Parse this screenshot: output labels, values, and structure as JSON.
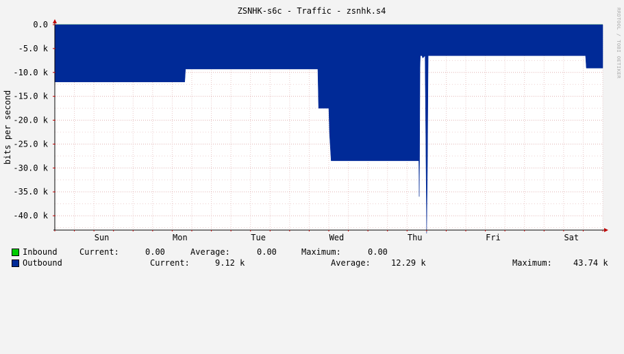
{
  "chart_data": {
    "type": "area",
    "title": "ZSNHK-s6c - Traffic - zsnhk.s4",
    "ylabel": "bits per second",
    "watermark": "RRDTOOL / TOBI OETIKER",
    "y_ticks": [
      "0.0",
      "-5.0 k",
      "-10.0 k",
      "-15.0 k",
      "-20.0 k",
      "-25.0 k",
      "-30.0 k",
      "-35.0 k",
      "-40.0 k"
    ],
    "y_tick_values": [
      0,
      -5000,
      -10000,
      -15000,
      -20000,
      -25000,
      -30000,
      -35000,
      -40000
    ],
    "ylim": [
      -43000,
      0
    ],
    "x_ticks": [
      "Sun",
      "Mon",
      "Tue",
      "Wed",
      "Thu",
      "Fri",
      "Sat"
    ],
    "xlim_days": [
      0,
      7
    ],
    "x_tick_days": [
      0.6,
      1.6,
      2.6,
      3.6,
      4.6,
      5.6,
      6.6
    ],
    "grid": true,
    "colors": {
      "inbound": "#00cc00",
      "outbound": "#002a97",
      "grid": "#e0b0b0",
      "axis": "#c00000",
      "canvas": "#ffffff",
      "background": "#f3f3f3"
    },
    "series": [
      {
        "name": "Inbound",
        "x_days": [
          0,
          7
        ],
        "values": [
          0,
          0
        ]
      },
      {
        "name": "Outbound",
        "x_days": [
          0,
          1.66,
          1.67,
          3.36,
          3.37,
          3.5,
          3.51,
          3.53,
          3.55,
          4.65,
          4.655,
          4.66,
          4.665,
          4.67,
          4.69,
          4.7,
          4.73,
          4.74,
          4.75,
          4.76,
          4.77,
          4.78,
          5.05,
          6.78,
          6.79,
          7
        ],
        "values": [
          -12000,
          -12000,
          -9300,
          -9300,
          -17500,
          -17500,
          -23000,
          -28500,
          -28500,
          -28500,
          -36000,
          -28500,
          -9000,
          -6500,
          -6500,
          -7000,
          -6500,
          -25000,
          -43700,
          -30000,
          -6500,
          -6500,
          -6500,
          -6500,
          -9100,
          -9100
        ]
      }
    ]
  },
  "legend": {
    "inbound": {
      "name": "Inbound",
      "current_label": "Current:",
      "current_value": "0.00",
      "average_label": "Average:",
      "average_value": "0.00",
      "maximum_label": "Maximum:",
      "maximum_value": "0.00"
    },
    "outbound": {
      "name": "Outbound",
      "current_label": "Current:",
      "current_value": "9.12 k",
      "average_label": "Average:",
      "average_value": "12.29 k",
      "maximum_label": "Maximum:",
      "maximum_value": "43.74 k"
    }
  }
}
